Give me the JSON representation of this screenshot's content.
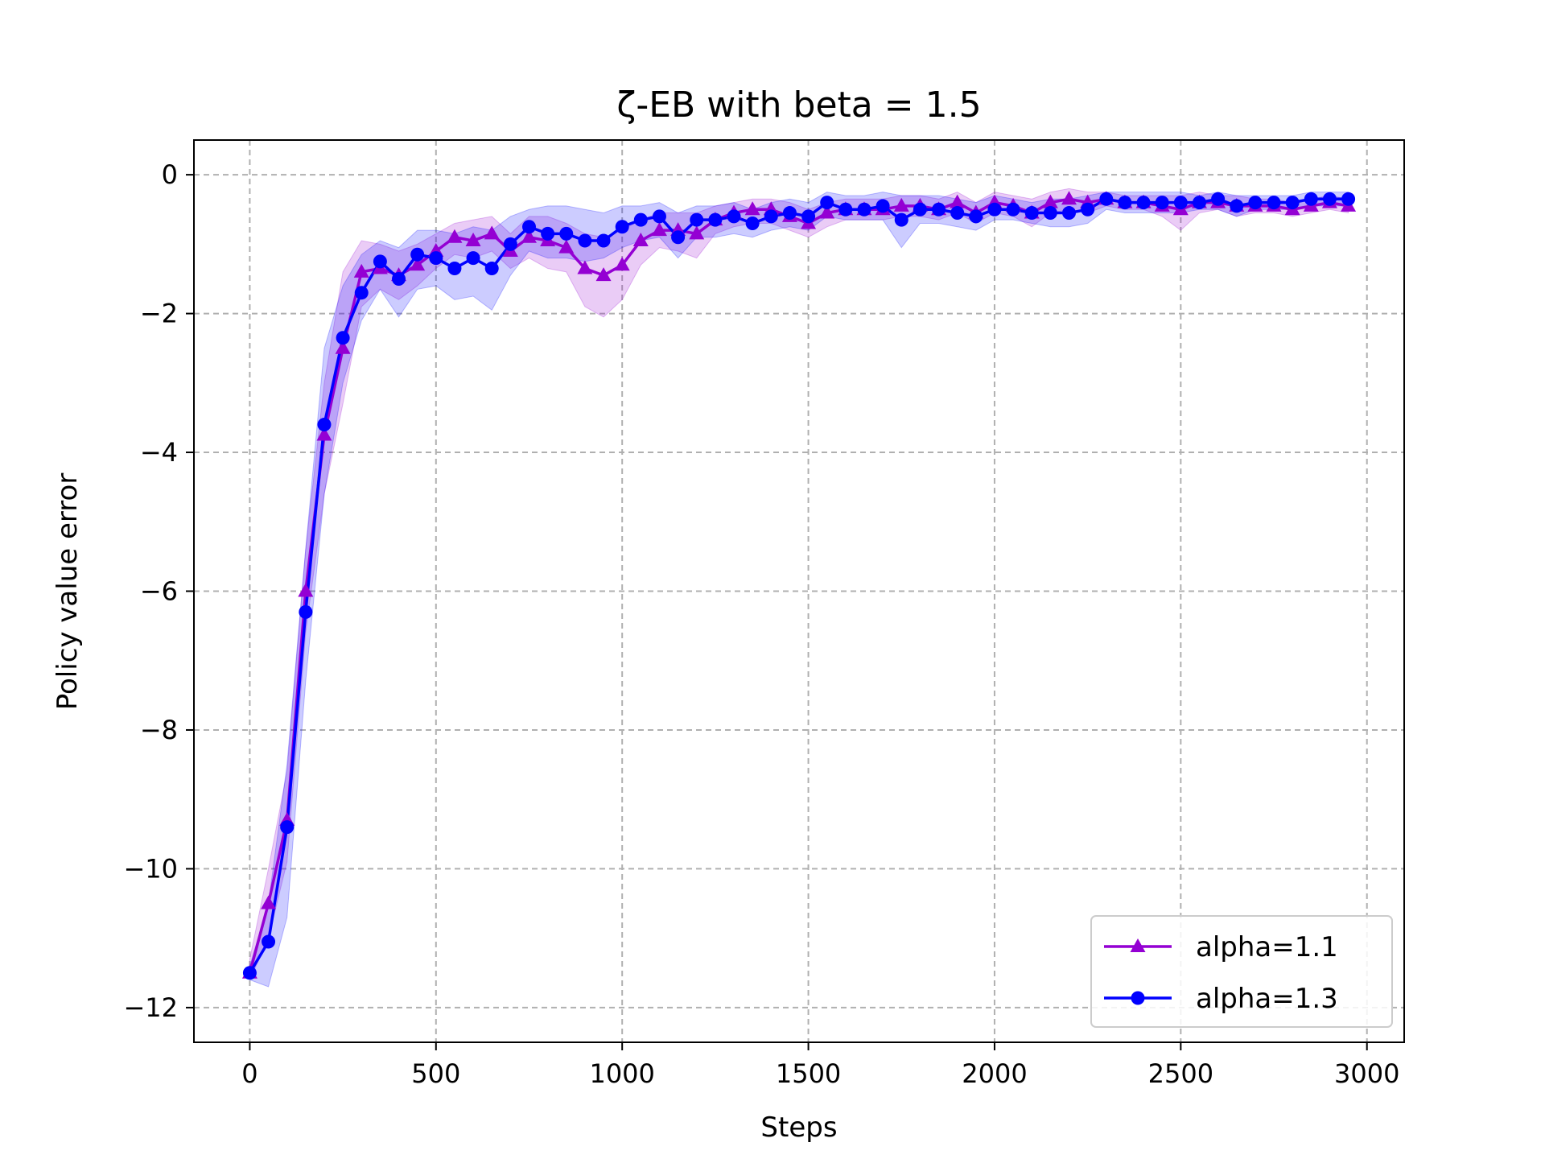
{
  "chart_data": {
    "type": "line",
    "title": "ζ-EB with beta = 1.5",
    "xlabel": "Steps",
    "ylabel": "Policy value error",
    "xlim": [
      -150,
      3100
    ],
    "ylim": [
      -12.5,
      0.5
    ],
    "x_ticks": [
      0,
      500,
      1000,
      1500,
      2000,
      2500,
      3000
    ],
    "x_tick_labels": [
      "0",
      "500",
      "1000",
      "1500",
      "2000",
      "2500",
      "3000"
    ],
    "y_ticks": [
      0,
      -2,
      -4,
      -6,
      -8,
      -10,
      -12
    ],
    "y_tick_labels": [
      "0",
      "−2",
      "−4",
      "−6",
      "−8",
      "−10",
      "−12"
    ],
    "grid": true,
    "legend_position": "lower-right",
    "x": [
      0,
      50,
      100,
      150,
      200,
      250,
      300,
      350,
      400,
      450,
      500,
      550,
      600,
      650,
      700,
      750,
      800,
      850,
      900,
      950,
      1000,
      1050,
      1100,
      1150,
      1200,
      1250,
      1300,
      1350,
      1400,
      1450,
      1500,
      1550,
      1600,
      1650,
      1700,
      1750,
      1800,
      1850,
      1900,
      1950,
      2000,
      2050,
      2100,
      2150,
      2200,
      2250,
      2300,
      2350,
      2400,
      2450,
      2500,
      2550,
      2600,
      2650,
      2700,
      2750,
      2800,
      2850,
      2900,
      2950
    ],
    "series": [
      {
        "name": "alpha=1.1",
        "color": "#9400d3",
        "marker": "triangle",
        "values": [
          -11.5,
          -10.5,
          -9.3,
          -6.0,
          -3.75,
          -2.5,
          -1.4,
          -1.35,
          -1.45,
          -1.3,
          -1.1,
          -0.9,
          -0.95,
          -0.85,
          -1.1,
          -0.9,
          -0.95,
          -1.05,
          -1.35,
          -1.45,
          -1.3,
          -0.95,
          -0.8,
          -0.8,
          -0.85,
          -0.65,
          -0.55,
          -0.5,
          -0.5,
          -0.6,
          -0.7,
          -0.55,
          -0.5,
          -0.5,
          -0.5,
          -0.45,
          -0.45,
          -0.5,
          -0.4,
          -0.55,
          -0.4,
          -0.45,
          -0.55,
          -0.4,
          -0.35,
          -0.4,
          -0.35,
          -0.4,
          -0.4,
          -0.45,
          -0.5,
          -0.4,
          -0.4,
          -0.45,
          -0.45,
          -0.45,
          -0.5,
          -0.45,
          -0.4,
          -0.45
        ],
        "lower": [
          -11.6,
          -11.0,
          -9.9,
          -6.6,
          -4.6,
          -3.3,
          -1.9,
          -1.65,
          -1.8,
          -1.6,
          -1.35,
          -1.15,
          -1.2,
          -1.1,
          -1.35,
          -1.2,
          -1.35,
          -1.4,
          -1.9,
          -2.05,
          -1.8,
          -1.3,
          -1.05,
          -1.1,
          -1.2,
          -0.85,
          -0.75,
          -0.7,
          -0.7,
          -0.8,
          -0.9,
          -0.75,
          -0.65,
          -0.65,
          -0.65,
          -0.6,
          -0.6,
          -0.65,
          -0.55,
          -0.7,
          -0.55,
          -0.6,
          -0.75,
          -0.55,
          -0.5,
          -0.55,
          -0.45,
          -0.5,
          -0.5,
          -0.6,
          -0.8,
          -0.55,
          -0.5,
          -0.6,
          -0.55,
          -0.55,
          -0.6,
          -0.55,
          -0.5,
          -0.55
        ],
        "upper": [
          -11.3,
          -10.0,
          -8.6,
          -5.4,
          -3.0,
          -1.4,
          -0.95,
          -1.0,
          -1.1,
          -1.0,
          -0.85,
          -0.7,
          -0.65,
          -0.6,
          -0.85,
          -0.6,
          -0.6,
          -0.7,
          -0.85,
          -0.9,
          -0.8,
          -0.65,
          -0.55,
          -0.55,
          -0.55,
          -0.45,
          -0.4,
          -0.35,
          -0.35,
          -0.4,
          -0.5,
          -0.4,
          -0.35,
          -0.35,
          -0.35,
          -0.3,
          -0.3,
          -0.35,
          -0.25,
          -0.4,
          -0.25,
          -0.3,
          -0.35,
          -0.25,
          -0.2,
          -0.25,
          -0.25,
          -0.3,
          -0.3,
          -0.3,
          -0.3,
          -0.25,
          -0.3,
          -0.3,
          -0.35,
          -0.35,
          -0.4,
          -0.35,
          -0.3,
          -0.35
        ]
      },
      {
        "name": "alpha=1.3",
        "color": "#0000ff",
        "marker": "circle",
        "values": [
          -11.5,
          -11.05,
          -9.4,
          -6.3,
          -3.6,
          -2.35,
          -1.7,
          -1.25,
          -1.5,
          -1.15,
          -1.2,
          -1.35,
          -1.2,
          -1.35,
          -1.0,
          -0.75,
          -0.85,
          -0.85,
          -0.95,
          -0.95,
          -0.75,
          -0.65,
          -0.6,
          -0.9,
          -0.65,
          -0.65,
          -0.6,
          -0.7,
          -0.6,
          -0.55,
          -0.6,
          -0.4,
          -0.5,
          -0.5,
          -0.45,
          -0.65,
          -0.5,
          -0.5,
          -0.55,
          -0.6,
          -0.5,
          -0.5,
          -0.55,
          -0.55,
          -0.55,
          -0.5,
          -0.35,
          -0.4,
          -0.4,
          -0.4,
          -0.4,
          -0.4,
          -0.35,
          -0.45,
          -0.4,
          -0.4,
          -0.4,
          -0.35,
          -0.35,
          -0.35
        ],
        "lower": [
          -11.6,
          -11.7,
          -10.7,
          -7.3,
          -4.6,
          -3.0,
          -2.1,
          -1.65,
          -2.05,
          -1.65,
          -1.6,
          -1.8,
          -1.75,
          -1.95,
          -1.45,
          -1.1,
          -1.2,
          -1.2,
          -1.25,
          -1.2,
          -1.05,
          -0.95,
          -0.9,
          -1.2,
          -0.9,
          -0.9,
          -0.85,
          -0.9,
          -0.8,
          -0.75,
          -0.8,
          -0.6,
          -0.65,
          -0.65,
          -0.65,
          -1.05,
          -0.7,
          -0.7,
          -0.75,
          -0.8,
          -0.65,
          -0.65,
          -0.7,
          -0.75,
          -0.75,
          -0.7,
          -0.5,
          -0.55,
          -0.55,
          -0.55,
          -0.55,
          -0.5,
          -0.5,
          -0.6,
          -0.5,
          -0.5,
          -0.5,
          -0.45,
          -0.45,
          -0.45
        ],
        "upper": [
          -11.4,
          -10.5,
          -8.5,
          -5.4,
          -2.5,
          -1.6,
          -1.15,
          -0.95,
          -1.05,
          -0.8,
          -0.8,
          -0.85,
          -0.75,
          -0.8,
          -0.6,
          -0.5,
          -0.45,
          -0.45,
          -0.5,
          -0.55,
          -0.45,
          -0.45,
          -0.4,
          -0.55,
          -0.45,
          -0.45,
          -0.4,
          -0.5,
          -0.4,
          -0.35,
          -0.4,
          -0.25,
          -0.3,
          -0.3,
          -0.25,
          -0.3,
          -0.3,
          -0.3,
          -0.35,
          -0.4,
          -0.3,
          -0.35,
          -0.4,
          -0.35,
          -0.35,
          -0.3,
          -0.25,
          -0.25,
          -0.25,
          -0.25,
          -0.25,
          -0.3,
          -0.25,
          -0.3,
          -0.3,
          -0.3,
          -0.3,
          -0.25,
          -0.25,
          -0.25
        ]
      }
    ]
  }
}
